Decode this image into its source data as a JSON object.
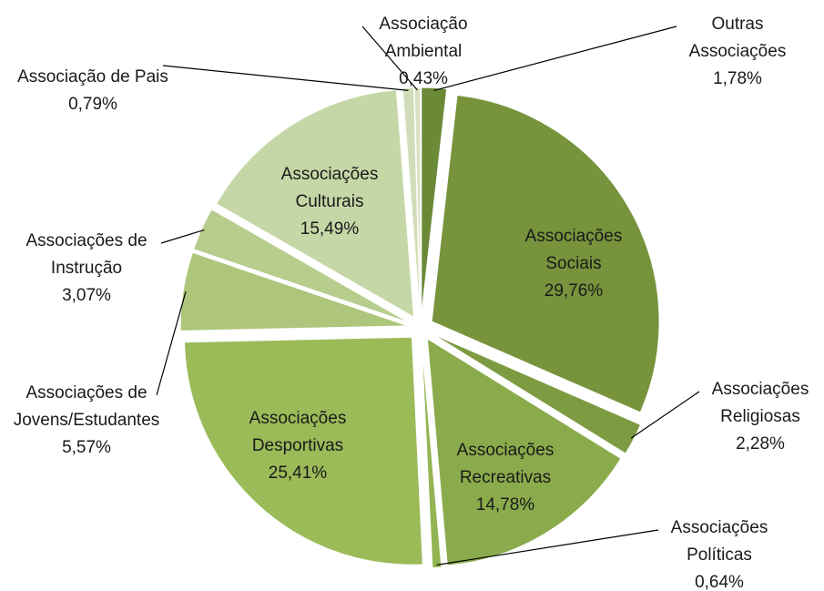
{
  "chart_data": {
    "type": "pie",
    "categories": [
      "Outras Associações",
      "Associações Sociais",
      "Associações Religiosas",
      "Associações Recreativas",
      "Associações Políticas",
      "Associações Desportivas",
      "Associações de Jovens/Estudantes",
      "Associações de Instrução",
      "Associações Culturais",
      "Associação de Pais",
      "Associação Ambiental"
    ],
    "values": [
      1.78,
      29.76,
      2.28,
      14.78,
      0.64,
      25.41,
      5.57,
      3.07,
      15.49,
      0.79,
      0.43
    ],
    "value_labels": [
      "1,78%",
      "29,76%",
      "2,28%",
      "14,78%",
      "0,64%",
      "25,41%",
      "5,57%",
      "3,07%",
      "15,49%",
      "0,79%",
      "0,43%"
    ],
    "colors": [
      "#6b8a38",
      "#77933c",
      "#7d9b41",
      "#8aab4b",
      "#93b452",
      "#9bbb59",
      "#adc67b",
      "#b6cd8d",
      "#c6d7a7",
      "#d0ddb8",
      "#d8e3c4"
    ]
  }
}
